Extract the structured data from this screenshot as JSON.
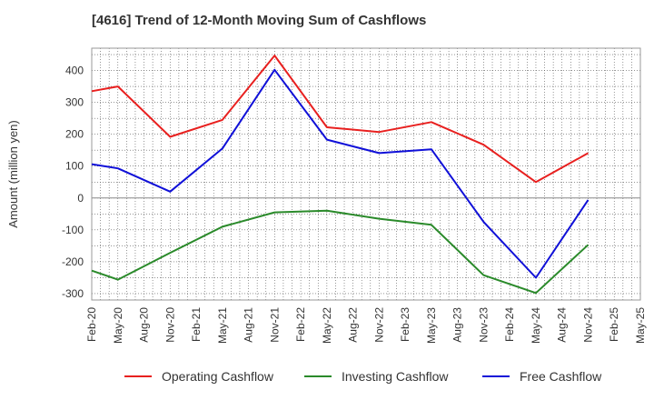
{
  "chart_data": {
    "type": "line",
    "title": "[4616]  Trend of 12-Month Moving Sum of Cashflows",
    "ylabel": "Amount (million yen)",
    "xlabel": "",
    "ylim": [
      -320,
      470
    ],
    "yticks": [
      -300,
      -200,
      -100,
      0,
      100,
      200,
      300,
      400
    ],
    "categories": [
      "Feb-20",
      "May-20",
      "Aug-20",
      "Nov-20",
      "Feb-21",
      "May-21",
      "Aug-21",
      "Nov-21",
      "Feb-22",
      "May-22",
      "Aug-22",
      "Nov-22",
      "Feb-23",
      "May-23",
      "Aug-23",
      "Nov-23",
      "Feb-24",
      "May-24",
      "Aug-24",
      "Nov-24",
      "Feb-25",
      "May-25"
    ],
    "grid": true,
    "legend_position": "bottom",
    "series": [
      {
        "name": "Operating Cashflow",
        "color": "#e8201f",
        "values": [
          335,
          350,
          null,
          192,
          null,
          245,
          null,
          447,
          null,
          222,
          null,
          207,
          null,
          238,
          null,
          167,
          null,
          50,
          null,
          141,
          null,
          null
        ]
      },
      {
        "name": "Investing Cashflow",
        "color": "#2a8a2a",
        "values": [
          -228,
          -256,
          null,
          -172,
          null,
          -90,
          null,
          -45,
          null,
          -40,
          null,
          -65,
          null,
          -84,
          null,
          -242,
          null,
          -298,
          null,
          -147,
          null,
          null
        ]
      },
      {
        "name": "Free Cashflow",
        "color": "#1010d8",
        "values": [
          106,
          93,
          null,
          20,
          null,
          155,
          null,
          402,
          null,
          183,
          null,
          141,
          null,
          153,
          null,
          -75,
          null,
          -250,
          null,
          -6,
          null,
          null
        ]
      }
    ]
  }
}
